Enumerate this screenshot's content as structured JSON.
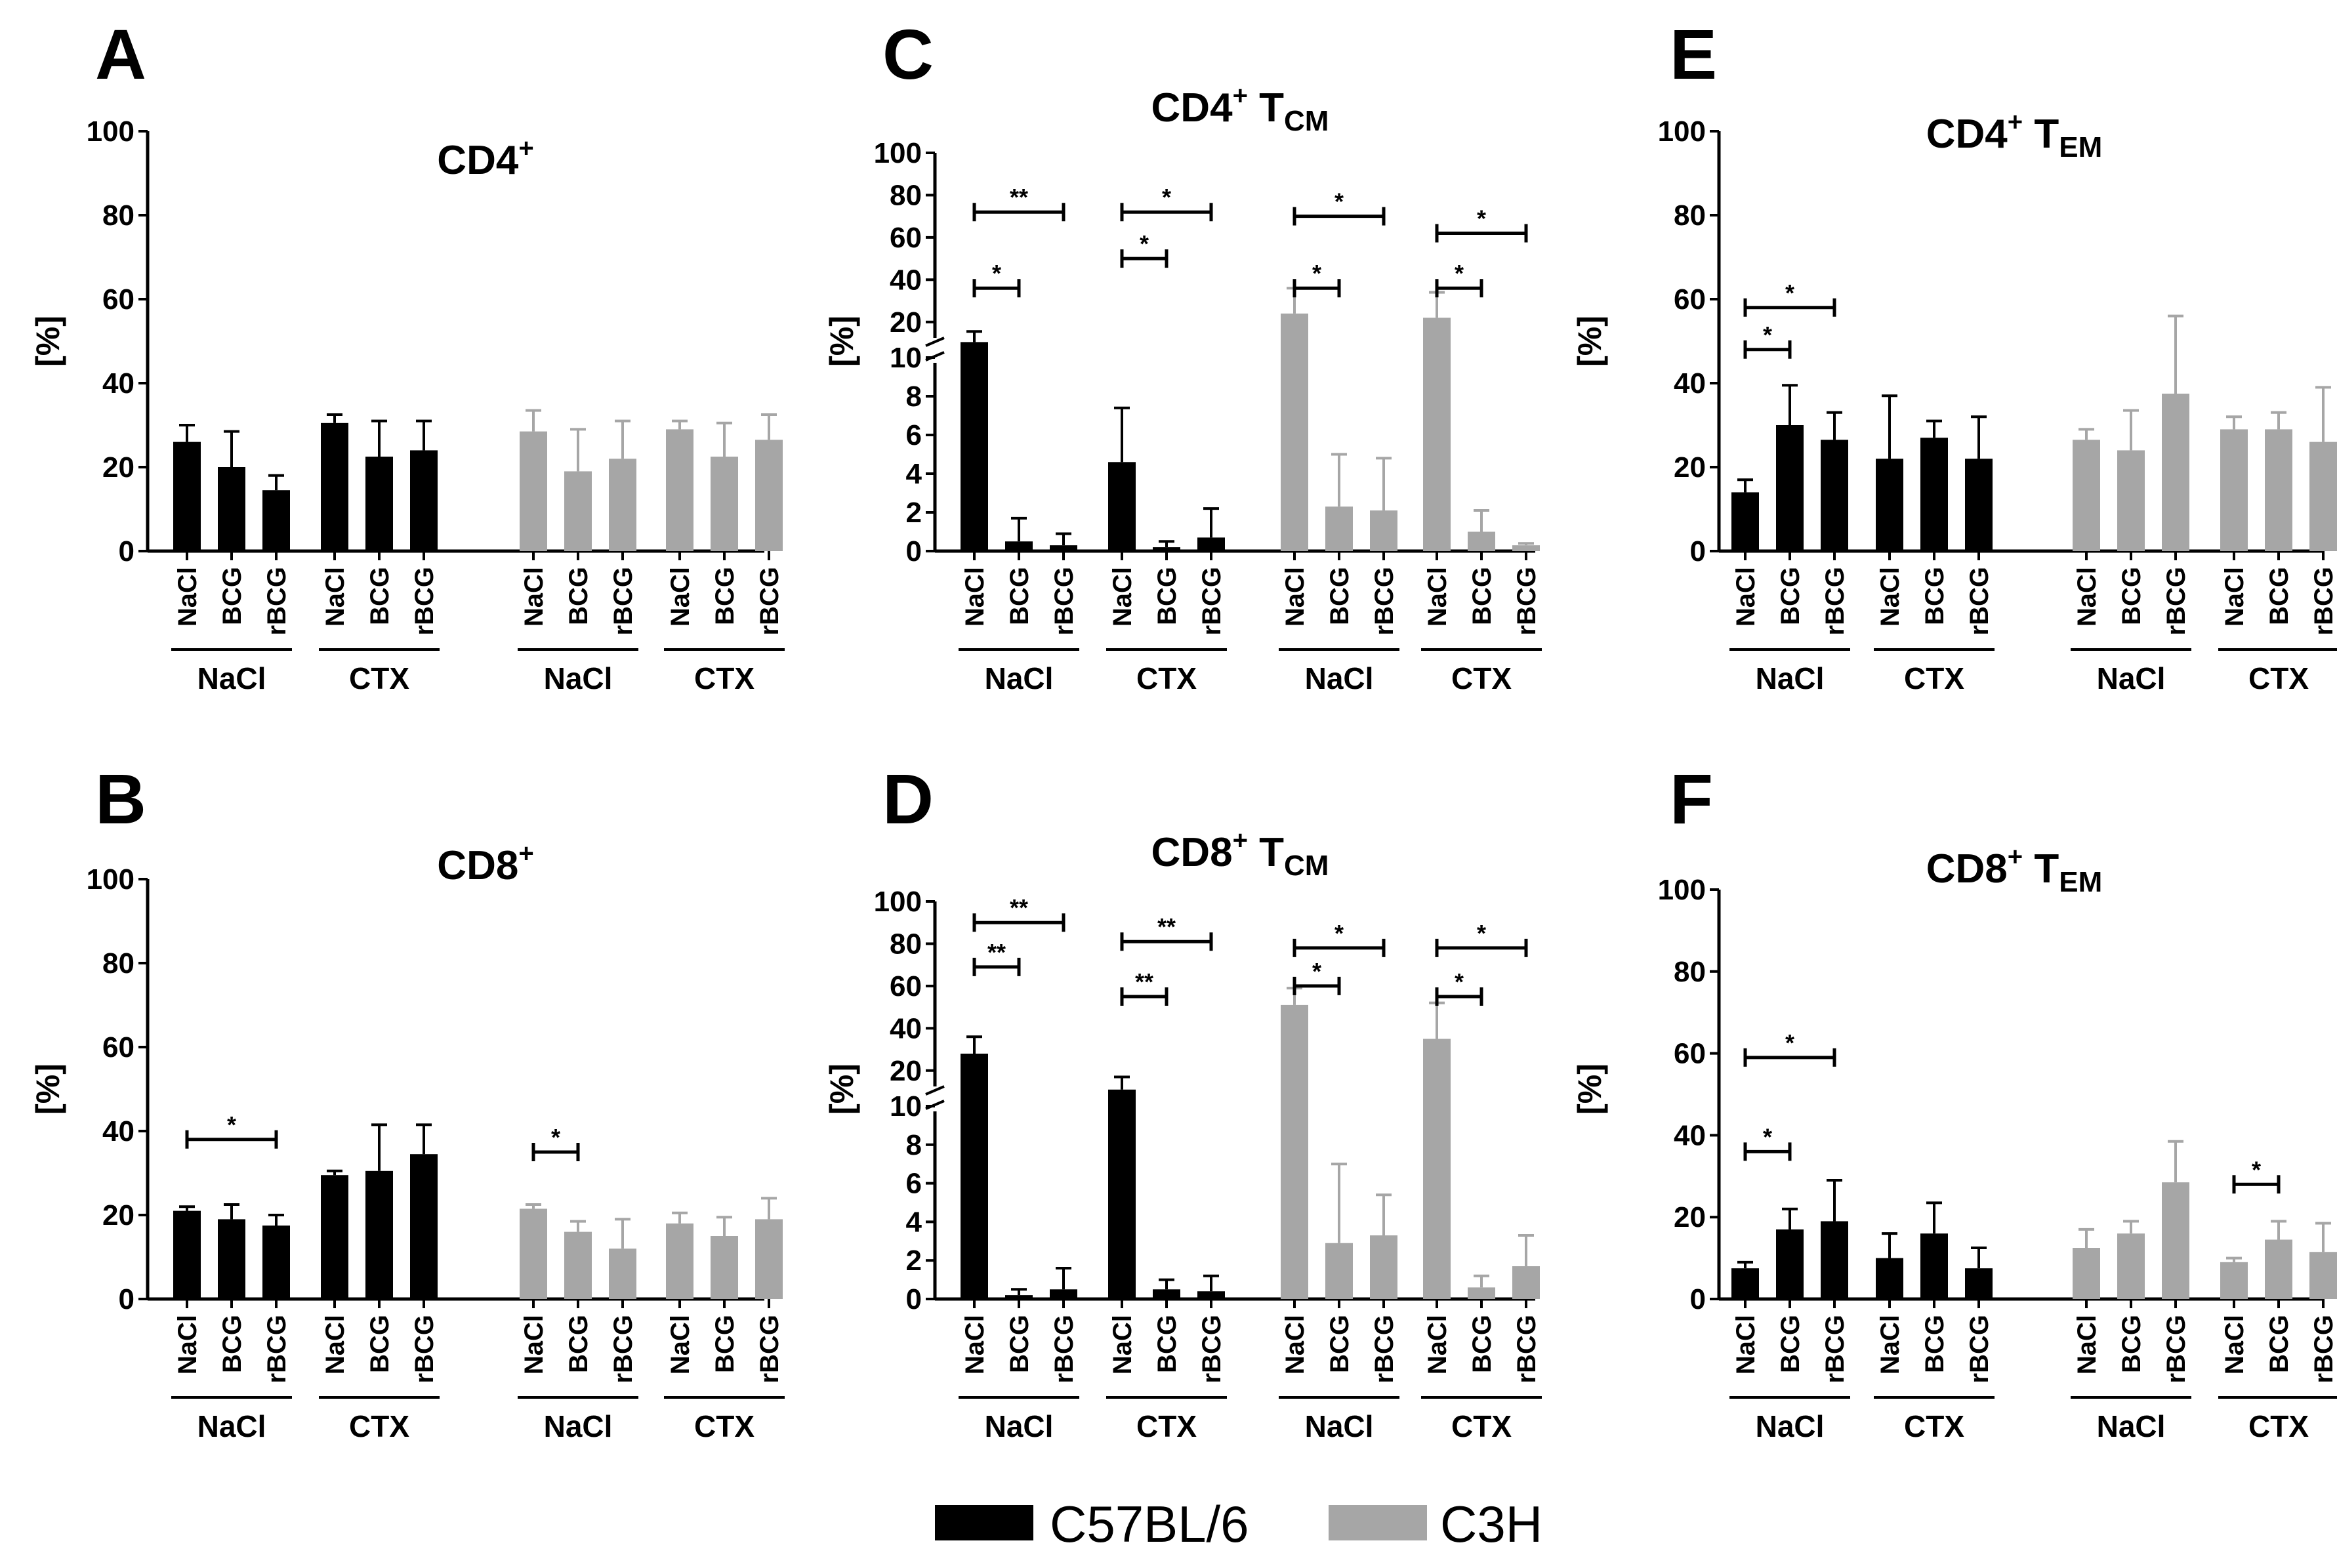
{
  "figure": {
    "legend": [
      {
        "label": "C57BL/6",
        "color": "#000000"
      },
      {
        "label": "C3H",
        "color": "#A6A6A6"
      }
    ]
  },
  "chart_data": [
    {
      "panel": "A",
      "type": "bar",
      "title_main": "CD4",
      "title_sup": "+",
      "title_sub": "",
      "ylabel": "[%]",
      "ylim": [
        0,
        100
      ],
      "yticks": [
        0,
        20,
        40,
        60,
        80,
        100
      ],
      "treatments": [
        "NaCl",
        "BCG",
        "rBCG"
      ],
      "groups": [
        {
          "label": "NaCl",
          "strain": "C57BL/6",
          "values": [
            26,
            20,
            14.5
          ],
          "errors": [
            4,
            8.5,
            3.5
          ]
        },
        {
          "label": "CTX",
          "strain": "C57BL/6",
          "values": [
            30.5,
            22.5,
            24
          ],
          "errors": [
            2,
            8.5,
            7
          ]
        },
        {
          "label": "NaCl",
          "strain": "C3H",
          "values": [
            28.5,
            19,
            22
          ],
          "errors": [
            5,
            10,
            9
          ]
        },
        {
          "label": "CTX",
          "strain": "C3H",
          "values": [
            29,
            22.5,
            26.5
          ],
          "errors": [
            2,
            8,
            6
          ]
        }
      ],
      "significance": []
    },
    {
      "panel": "B",
      "type": "bar",
      "title_main": "CD8",
      "title_sup": "+",
      "title_sub": "",
      "ylabel": "[%]",
      "ylim": [
        0,
        100
      ],
      "yticks": [
        0,
        20,
        40,
        60,
        80,
        100
      ],
      "treatments": [
        "NaCl",
        "BCG",
        "rBCG"
      ],
      "groups": [
        {
          "label": "NaCl",
          "strain": "C57BL/6",
          "values": [
            21,
            19,
            17.5
          ],
          "errors": [
            1,
            3.5,
            2.5
          ]
        },
        {
          "label": "CTX",
          "strain": "C57BL/6",
          "values": [
            29.5,
            30.5,
            34.5
          ],
          "errors": [
            1,
            11,
            7
          ]
        },
        {
          "label": "NaCl",
          "strain": "C3H",
          "values": [
            21.5,
            16,
            12
          ],
          "errors": [
            1,
            2.5,
            7
          ]
        },
        {
          "label": "CTX",
          "strain": "C3H",
          "values": [
            18,
            15,
            19
          ],
          "errors": [
            2.5,
            4.5,
            5
          ]
        }
      ],
      "significance": [
        {
          "group": 0,
          "from": 0,
          "to": 2,
          "label": "*",
          "y": 38
        },
        {
          "group": 2,
          "from": 0,
          "to": 1,
          "label": "*",
          "y": 35
        }
      ]
    },
    {
      "panel": "C",
      "type": "bar",
      "title_main": "CD4",
      "title_sup": "+",
      "title_sub": "CM",
      "title_tail": " T",
      "ylabel": "[%]",
      "broken_axis": true,
      "ylim_lower": [
        0,
        10
      ],
      "ylim_upper": [
        10,
        100
      ],
      "yticks_lower": [
        0,
        2,
        4,
        6,
        8,
        10
      ],
      "yticks_upper": [
        20,
        40,
        60,
        80,
        100
      ],
      "treatments": [
        "NaCl",
        "BCG",
        "rBCG"
      ],
      "groups": [
        {
          "label": "NaCl",
          "strain": "C57BL/6",
          "values": [
            10.5,
            0.5,
            0.3
          ],
          "errors": [
            5,
            1.2,
            0.6
          ]
        },
        {
          "label": "CTX",
          "strain": "C57BL/6",
          "values": [
            4.6,
            0.2,
            0.7
          ],
          "errors": [
            2.8,
            0.3,
            1.5
          ]
        },
        {
          "label": "NaCl",
          "strain": "C3H",
          "values": [
            24,
            2.3,
            2.1
          ],
          "errors": [
            12,
            2.7,
            2.7
          ]
        },
        {
          "label": "CTX",
          "strain": "C3H",
          "values": [
            22,
            1.0,
            0.3
          ],
          "errors": [
            12,
            1.1,
            0.1
          ]
        }
      ],
      "significance": [
        {
          "group": 0,
          "from": 0,
          "to": 2,
          "label": "**",
          "y": 72
        },
        {
          "group": 0,
          "from": 0,
          "to": 1,
          "label": "*",
          "y": 36
        },
        {
          "group": 1,
          "from": 0,
          "to": 2,
          "label": "*",
          "y": 72
        },
        {
          "group": 1,
          "from": 0,
          "to": 1,
          "label": "*",
          "y": 50
        },
        {
          "group": 2,
          "from": 0,
          "to": 2,
          "label": "*",
          "y": 70
        },
        {
          "group": 2,
          "from": 0,
          "to": 1,
          "label": "*",
          "y": 36
        },
        {
          "group": 3,
          "from": 0,
          "to": 2,
          "label": "*",
          "y": 62
        },
        {
          "group": 3,
          "from": 0,
          "to": 1,
          "label": "*",
          "y": 36
        }
      ]
    },
    {
      "panel": "D",
      "type": "bar",
      "title_main": "CD8",
      "title_sup": "+",
      "title_sub": "CM",
      "title_tail": " T",
      "ylabel": "[%]",
      "broken_axis": true,
      "ylim_lower": [
        0,
        10
      ],
      "ylim_upper": [
        10,
        100
      ],
      "yticks_lower": [
        0,
        2,
        4,
        6,
        8,
        10
      ],
      "yticks_upper": [
        20,
        40,
        60,
        80,
        100
      ],
      "treatments": [
        "NaCl",
        "BCG",
        "rBCG"
      ],
      "groups": [
        {
          "label": "NaCl",
          "strain": "C57BL/6",
          "values": [
            28,
            0.2,
            0.5
          ],
          "errors": [
            8,
            0.3,
            1.1
          ]
        },
        {
          "label": "CTX",
          "strain": "C57BL/6",
          "values": [
            11,
            0.5,
            0.4
          ],
          "errors": [
            6,
            0.5,
            0.8
          ]
        },
        {
          "label": "NaCl",
          "strain": "C3H",
          "values": [
            51,
            2.9,
            3.3
          ],
          "errors": [
            8,
            4.1,
            2.1
          ]
        },
        {
          "label": "CTX",
          "strain": "C3H",
          "values": [
            35,
            0.6,
            1.7
          ],
          "errors": [
            17,
            0.6,
            1.6
          ]
        }
      ],
      "significance": [
        {
          "group": 0,
          "from": 0,
          "to": 2,
          "label": "**",
          "y": 90
        },
        {
          "group": 0,
          "from": 0,
          "to": 1,
          "label": "**",
          "y": 69
        },
        {
          "group": 1,
          "from": 0,
          "to": 2,
          "label": "**",
          "y": 81
        },
        {
          "group": 1,
          "from": 0,
          "to": 1,
          "label": "**",
          "y": 55
        },
        {
          "group": 2,
          "from": 0,
          "to": 2,
          "label": "*",
          "y": 78
        },
        {
          "group": 2,
          "from": 0,
          "to": 1,
          "label": "*",
          "y": 60
        },
        {
          "group": 3,
          "from": 0,
          "to": 2,
          "label": "*",
          "y": 78
        },
        {
          "group": 3,
          "from": 0,
          "to": 1,
          "label": "*",
          "y": 55
        }
      ]
    },
    {
      "panel": "E",
      "type": "bar",
      "title_main": "CD4",
      "title_sup": "+",
      "title_sub": "EM",
      "title_tail": " T",
      "ylabel": "[%]",
      "ylim": [
        0,
        100
      ],
      "yticks": [
        0,
        20,
        40,
        60,
        80,
        100
      ],
      "treatments": [
        "NaCl",
        "BCG",
        "rBCG"
      ],
      "groups": [
        {
          "label": "NaCl",
          "strain": "C57BL/6",
          "values": [
            14,
            30,
            26.5
          ],
          "errors": [
            3,
            9.5,
            6.5
          ]
        },
        {
          "label": "CTX",
          "strain": "C57BL/6",
          "values": [
            22,
            27,
            22
          ],
          "errors": [
            15,
            4,
            10
          ]
        },
        {
          "label": "NaCl",
          "strain": "C3H",
          "values": [
            26.5,
            24,
            37.5
          ],
          "errors": [
            2.5,
            9.5,
            18.5
          ]
        },
        {
          "label": "CTX",
          "strain": "C3H",
          "values": [
            29,
            29,
            26
          ],
          "errors": [
            3,
            4,
            13
          ]
        }
      ],
      "significance": [
        {
          "group": 0,
          "from": 0,
          "to": 2,
          "label": "*",
          "y": 58
        },
        {
          "group": 0,
          "from": 0,
          "to": 1,
          "label": "*",
          "y": 48
        }
      ]
    },
    {
      "panel": "F",
      "type": "bar",
      "title_main": "CD8",
      "title_sup": "+",
      "title_sub": "EM",
      "title_tail": " T",
      "ylabel": "[%]",
      "ylim": [
        0,
        100
      ],
      "yticks": [
        0,
        20,
        40,
        60,
        80,
        100
      ],
      "treatments": [
        "NaCl",
        "BCG",
        "rBCG"
      ],
      "groups": [
        {
          "label": "NaCl",
          "strain": "C57BL/6",
          "values": [
            7.5,
            17,
            19
          ],
          "errors": [
            1.5,
            5,
            10
          ]
        },
        {
          "label": "CTX",
          "strain": "C57BL/6",
          "values": [
            10,
            16,
            7.5
          ],
          "errors": [
            6,
            7.5,
            5
          ]
        },
        {
          "label": "NaCl",
          "strain": "C3H",
          "values": [
            12.5,
            16,
            28.5
          ],
          "errors": [
            4.5,
            3,
            10
          ]
        },
        {
          "label": "CTX",
          "strain": "C3H",
          "values": [
            9,
            14.5,
            11.5
          ],
          "errors": [
            1,
            4.5,
            7
          ]
        }
      ],
      "significance": [
        {
          "group": 0,
          "from": 0,
          "to": 2,
          "label": "*",
          "y": 59
        },
        {
          "group": 0,
          "from": 0,
          "to": 1,
          "label": "*",
          "y": 36
        },
        {
          "group": 3,
          "from": 0,
          "to": 1,
          "label": "*",
          "y": 28
        }
      ]
    }
  ]
}
